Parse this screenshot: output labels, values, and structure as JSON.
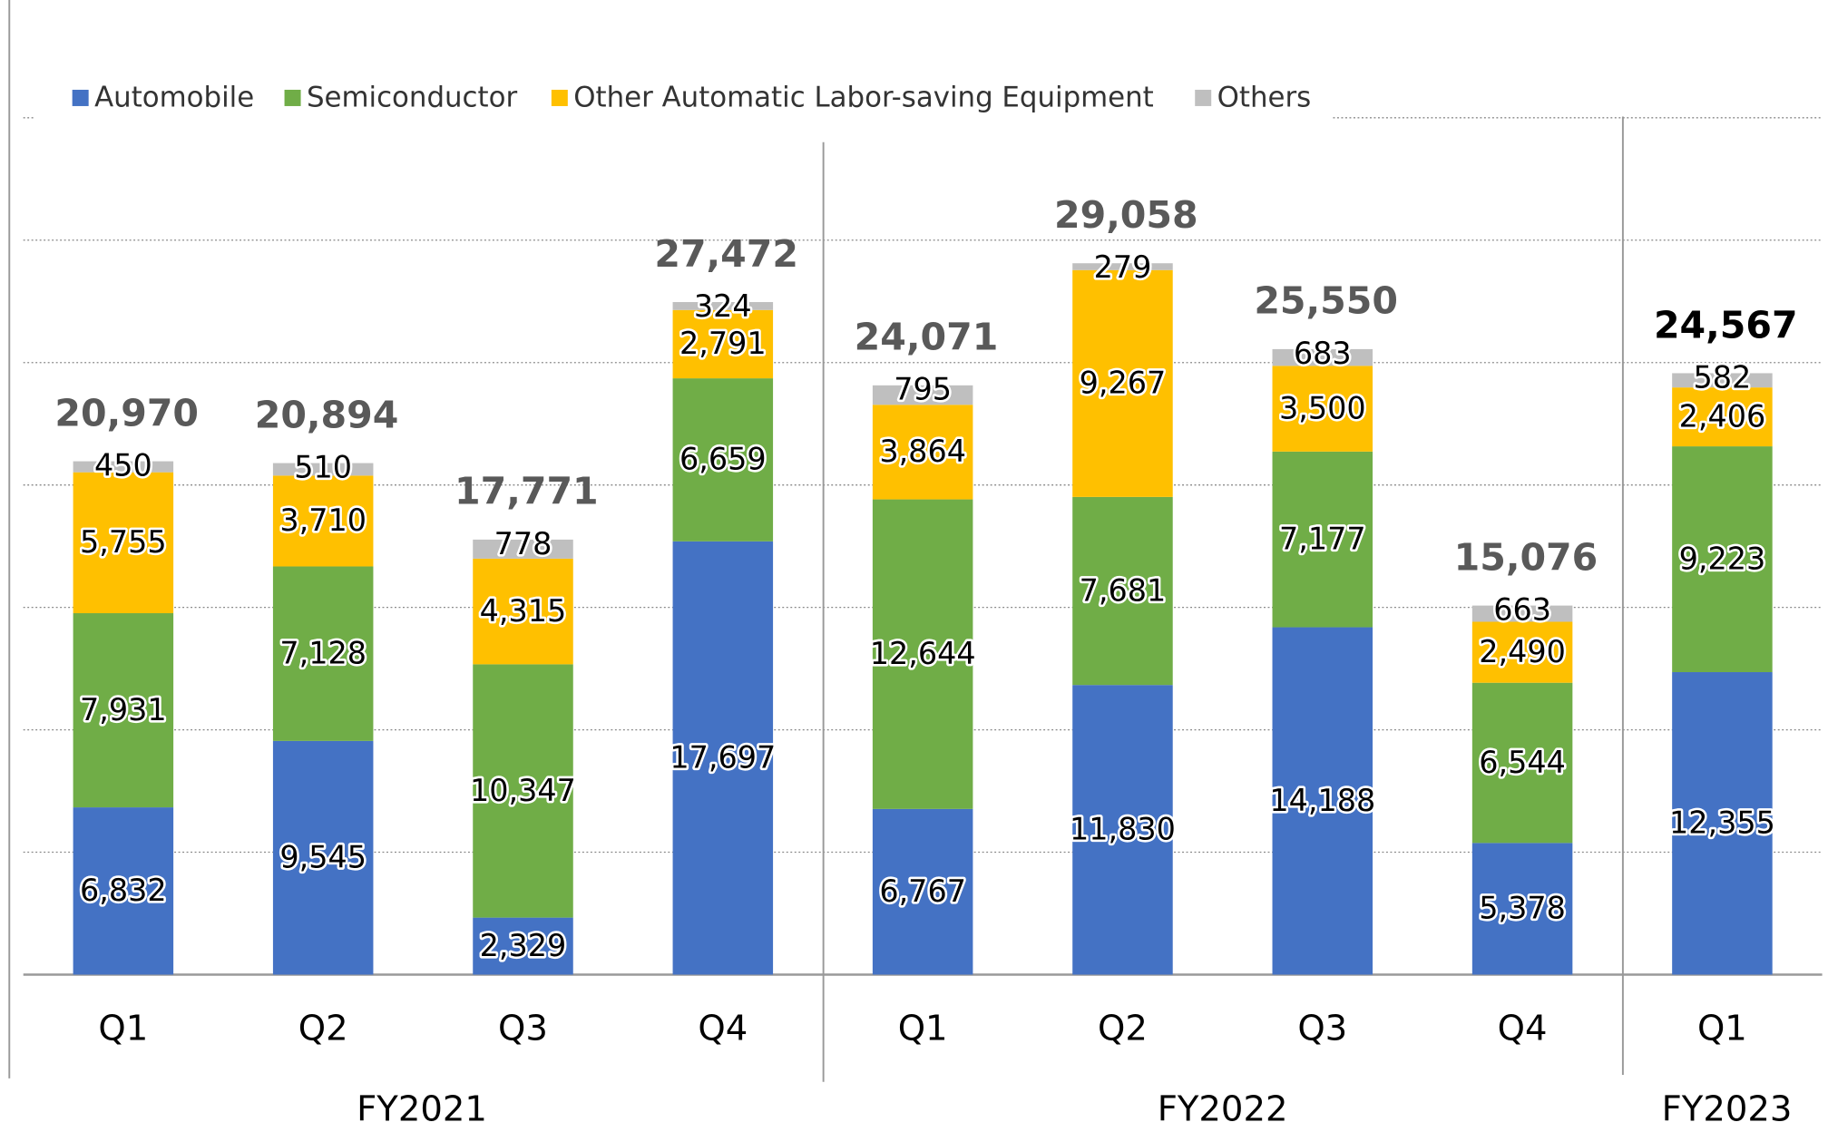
{
  "chart_data": {
    "type": "stacked_bar",
    "groups": [
      {
        "name": "FY2021",
        "categories": [
          "Q1",
          "Q2",
          "Q3",
          "Q4"
        ]
      },
      {
        "name": "FY2022",
        "categories": [
          "Q1",
          "Q2",
          "Q3",
          "Q4"
        ]
      },
      {
        "name": "FY2023",
        "categories": [
          "Q1"
        ]
      }
    ],
    "series": [
      {
        "name": "Automobile",
        "color": "#4472c4",
        "values": [
          6832,
          9545,
          2329,
          17697,
          6767,
          11830,
          14188,
          5378,
          12355
        ],
        "value_labels": [
          "6,832",
          "9,545",
          "2,329",
          "17,697",
          "6,767",
          "11,830",
          "14,188",
          "5,378",
          "12,355"
        ]
      },
      {
        "name": "Semiconductor",
        "color": "#70ad47",
        "values": [
          7931,
          7128,
          10347,
          6659,
          12644,
          7681,
          7177,
          6544,
          9223
        ],
        "value_labels": [
          "7,931",
          "7,128",
          "10,347",
          "6,659",
          "12,644",
          "7,681",
          "7,177",
          "6,544",
          "9,223"
        ]
      },
      {
        "name": "Other Automatic Labor-saving Equipment",
        "color": "#ffc000",
        "values": [
          5755,
          3710,
          4315,
          2791,
          3864,
          9267,
          3500,
          2490,
          2406
        ],
        "value_labels": [
          "5,755",
          "3,710",
          "4,315",
          "2,791",
          "3,864",
          "9,267",
          "3,500",
          "2,490",
          "2,406"
        ]
      },
      {
        "name": "Others",
        "color": "#bfbfbf",
        "values": [
          450,
          510,
          778,
          324,
          795,
          279,
          683,
          663,
          582
        ],
        "value_labels": [
          "450",
          "510",
          "778",
          "324",
          "795",
          "279",
          "683",
          "663",
          "582"
        ]
      }
    ],
    "totals": [
      20970,
      20894,
      17771,
      27472,
      24071,
      29058,
      25550,
      15076,
      24567
    ],
    "total_labels": [
      "20,970",
      "20,894",
      "17,771",
      "27,472",
      "24,071",
      "29,058",
      "25,550",
      "15,076",
      "24,567"
    ],
    "total_colors": [
      "#595959",
      "#595959",
      "#595959",
      "#595959",
      "#595959",
      "#595959",
      "#595959",
      "#595959",
      "#000000"
    ],
    "ylim": [
      0,
      35000
    ],
    "yticks": [
      0,
      5000,
      10000,
      15000,
      20000,
      25000,
      30000,
      35000
    ],
    "grid": true
  }
}
